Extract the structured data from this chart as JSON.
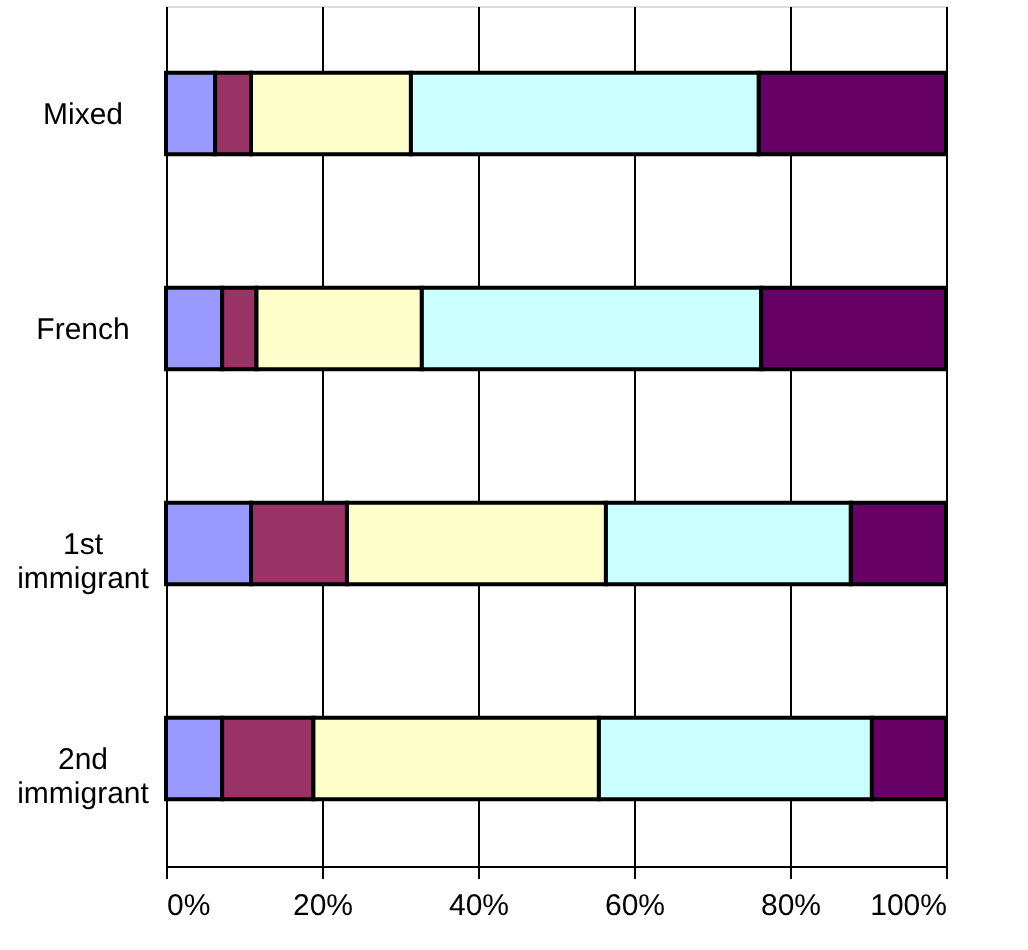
{
  "chart_data": {
    "type": "bar",
    "orientation": "horizontal",
    "stacked": true,
    "categories": [
      "Mixed",
      "French",
      "1st immigrant",
      "2nd immigrant"
    ],
    "series": [
      {
        "color": "#9999ff",
        "values": [
          6.3,
          7.2,
          10.9,
          7.2
        ]
      },
      {
        "color": "#993366",
        "values": [
          4.6,
          4.4,
          12.3,
          11.7
        ]
      },
      {
        "color": "#ffffcc",
        "values": [
          20.5,
          21.2,
          33.2,
          36.6
        ]
      },
      {
        "color": "#ccffff",
        "values": [
          44.6,
          43.5,
          31.4,
          35.0
        ]
      },
      {
        "color": "#660066",
        "values": [
          24.0,
          23.7,
          12.2,
          9.5
        ]
      }
    ],
    "xlim": [
      0,
      100
    ],
    "xticks": [
      {
        "value": 0,
        "label": "0%"
      },
      {
        "value": 20,
        "label": "20%"
      },
      {
        "value": 40,
        "label": "40%"
      },
      {
        "value": 60,
        "label": "60%"
      },
      {
        "value": 80,
        "label": "80%"
      },
      {
        "value": 100,
        "label": "100%"
      }
    ],
    "grid": "x",
    "legend": false
  }
}
